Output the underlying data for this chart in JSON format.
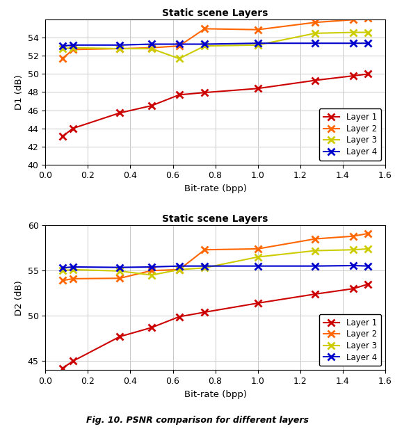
{
  "x": [
    0.08,
    0.13,
    0.35,
    0.5,
    0.63,
    0.75,
    1.0,
    1.27,
    1.45,
    1.52
  ],
  "d1_layer1": [
    43.1,
    44.0,
    45.7,
    46.5,
    47.7,
    47.95,
    48.4,
    49.3,
    49.8,
    50.0
  ],
  "d1_layer2": [
    51.7,
    52.7,
    52.8,
    52.9,
    53.1,
    55.0,
    54.9,
    55.7,
    56.0,
    56.2
  ],
  "d1_layer3": [
    52.8,
    52.9,
    52.8,
    52.8,
    51.7,
    53.1,
    53.2,
    54.5,
    54.6,
    54.6
  ],
  "d1_layer4": [
    53.1,
    53.2,
    53.2,
    53.3,
    53.3,
    53.3,
    53.4,
    53.4,
    53.4,
    53.4
  ],
  "d2_layer1": [
    44.2,
    45.0,
    47.7,
    48.7,
    49.9,
    50.4,
    51.4,
    52.4,
    53.0,
    53.5
  ],
  "d2_layer2": [
    53.9,
    54.1,
    54.15,
    55.0,
    55.1,
    57.3,
    57.4,
    58.5,
    58.8,
    59.1
  ],
  "d2_layer3": [
    55.0,
    55.1,
    54.95,
    54.5,
    55.1,
    55.3,
    56.5,
    57.2,
    57.3,
    57.4
  ],
  "d2_layer4": [
    55.3,
    55.4,
    55.35,
    55.4,
    55.5,
    55.5,
    55.5,
    55.5,
    55.55,
    55.5
  ],
  "color_layer1": "#cc0000",
  "color_layer2": "#ff6600",
  "color_layer3": "#cccc00",
  "color_layer4": "#0000cc",
  "title": "Static scene Layers",
  "xlabel": "Bit-rate (bpp)",
  "ylabel_top": "D1 (dB)",
  "ylabel_bot": "D2 (dB)",
  "xlim": [
    0.0,
    1.6
  ],
  "d1_ylim": [
    40,
    56
  ],
  "d2_ylim": [
    44,
    60
  ],
  "d1_yticks": [
    40,
    42,
    44,
    46,
    48,
    50,
    52,
    54
  ],
  "d2_yticks": [
    45,
    50,
    55,
    60
  ],
  "xticks": [
    0.0,
    0.2,
    0.4,
    0.6,
    0.8,
    1.0,
    1.2,
    1.4,
    1.6
  ],
  "legend_labels": [
    "Layer 1",
    "Layer 2",
    "Layer 3",
    "Layer 4"
  ],
  "caption": "Fig. 10. PSNR comparison for different layers"
}
